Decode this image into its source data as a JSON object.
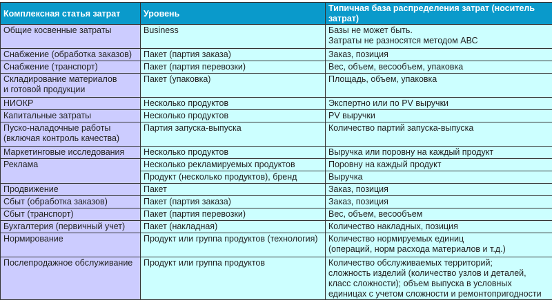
{
  "colors": {
    "header": "#0a9acb",
    "col1": "#ccccff",
    "cells": "#ccffff"
  },
  "headers": [
    "Комплексная статья затрат",
    "Уровень",
    "Типичная база распределения затрат (носитель затрат)"
  ],
  "rows": [
    {
      "item": [
        "Общие косвенные затраты"
      ],
      "level": [
        "Business"
      ],
      "base": [
        "Базы не может быть.",
        "Затраты не разносятся методом АВС"
      ]
    },
    {
      "item": [
        "Снабжение (обработка заказов)"
      ],
      "level": [
        "Пакет (партия заказа)"
      ],
      "base": [
        "Заказ, позиция"
      ]
    },
    {
      "item": [
        "Снабжение (транспорт)"
      ],
      "level": [
        "Пакет (партия перевозки)"
      ],
      "base": [
        "Вес, объем, весообъем, упаковка"
      ]
    },
    {
      "item": [
        "Складирование материалов",
        "и готовой продукции"
      ],
      "level": [
        "Пакет (упаковка)"
      ],
      "base": [
        "Площадь, объем, упаковка"
      ]
    },
    {
      "item": [
        "НИОКР"
      ],
      "level": [
        "Несколько продуктов"
      ],
      "base": [
        "Экспертно или по PV выручки"
      ]
    },
    {
      "item": [
        "Капитальные затраты"
      ],
      "level": [
        "Несколько продуктов"
      ],
      "base": [
        "PV выручки"
      ]
    },
    {
      "item": [
        "Пуско-наладочные работы",
        "(включая контроль качества)"
      ],
      "level": [
        "Партия запуска-выпуска"
      ],
      "base": [
        "Количество партий запуска-выпуска"
      ]
    },
    {
      "item": [
        "Маркетинговые исследования"
      ],
      "level": [
        "Несколько продуктов"
      ],
      "base": [
        "Выручка или поровну на каждый продукт"
      ]
    },
    {
      "item": [
        "Реклама"
      ],
      "level": [
        "Несколько рекламируемых продуктов"
      ],
      "base": [
        "Поровну на каждый продукт"
      ],
      "level2": [
        "Продукт (несколько продуктов), бренд"
      ],
      "base2": [
        "Выручка"
      ]
    },
    {
      "item": [
        "Продвижение"
      ],
      "level": [
        "Пакет"
      ],
      "base": [
        "Заказ, позиция"
      ]
    },
    {
      "item": [
        "Сбыт (обработка заказов)"
      ],
      "level": [
        "Пакет (партия заказа)"
      ],
      "base": [
        "Заказ, позиция"
      ]
    },
    {
      "item": [
        "Сбыт (транспорт)"
      ],
      "level": [
        "Пакет (партия перевозки)"
      ],
      "base": [
        "Вес, объем, весообъем"
      ]
    },
    {
      "item": [
        "Бухгалтерия (первичный учет)"
      ],
      "level": [
        "Пакет (накладная)"
      ],
      "base": [
        "Количество накладных, позиция"
      ]
    },
    {
      "item": [
        "Нормирование"
      ],
      "level": [
        "Продукт или группа продуктов (технология)"
      ],
      "base": [
        "Количество нормируемых единиц",
        "(операций, норм расхода материалов и т.д.)"
      ]
    },
    {
      "item": [
        "Послепродажное обслуживание"
      ],
      "level": [
        "Продукт или группа продуктов"
      ],
      "base": [
        "Количество обслуживаемых территорий;",
        "сложность изделий (количество узлов и деталей,",
        "класс сложности); объем выпуска в условных",
        "единицах с учетом сложности и ремонтопригодности"
      ]
    }
  ]
}
